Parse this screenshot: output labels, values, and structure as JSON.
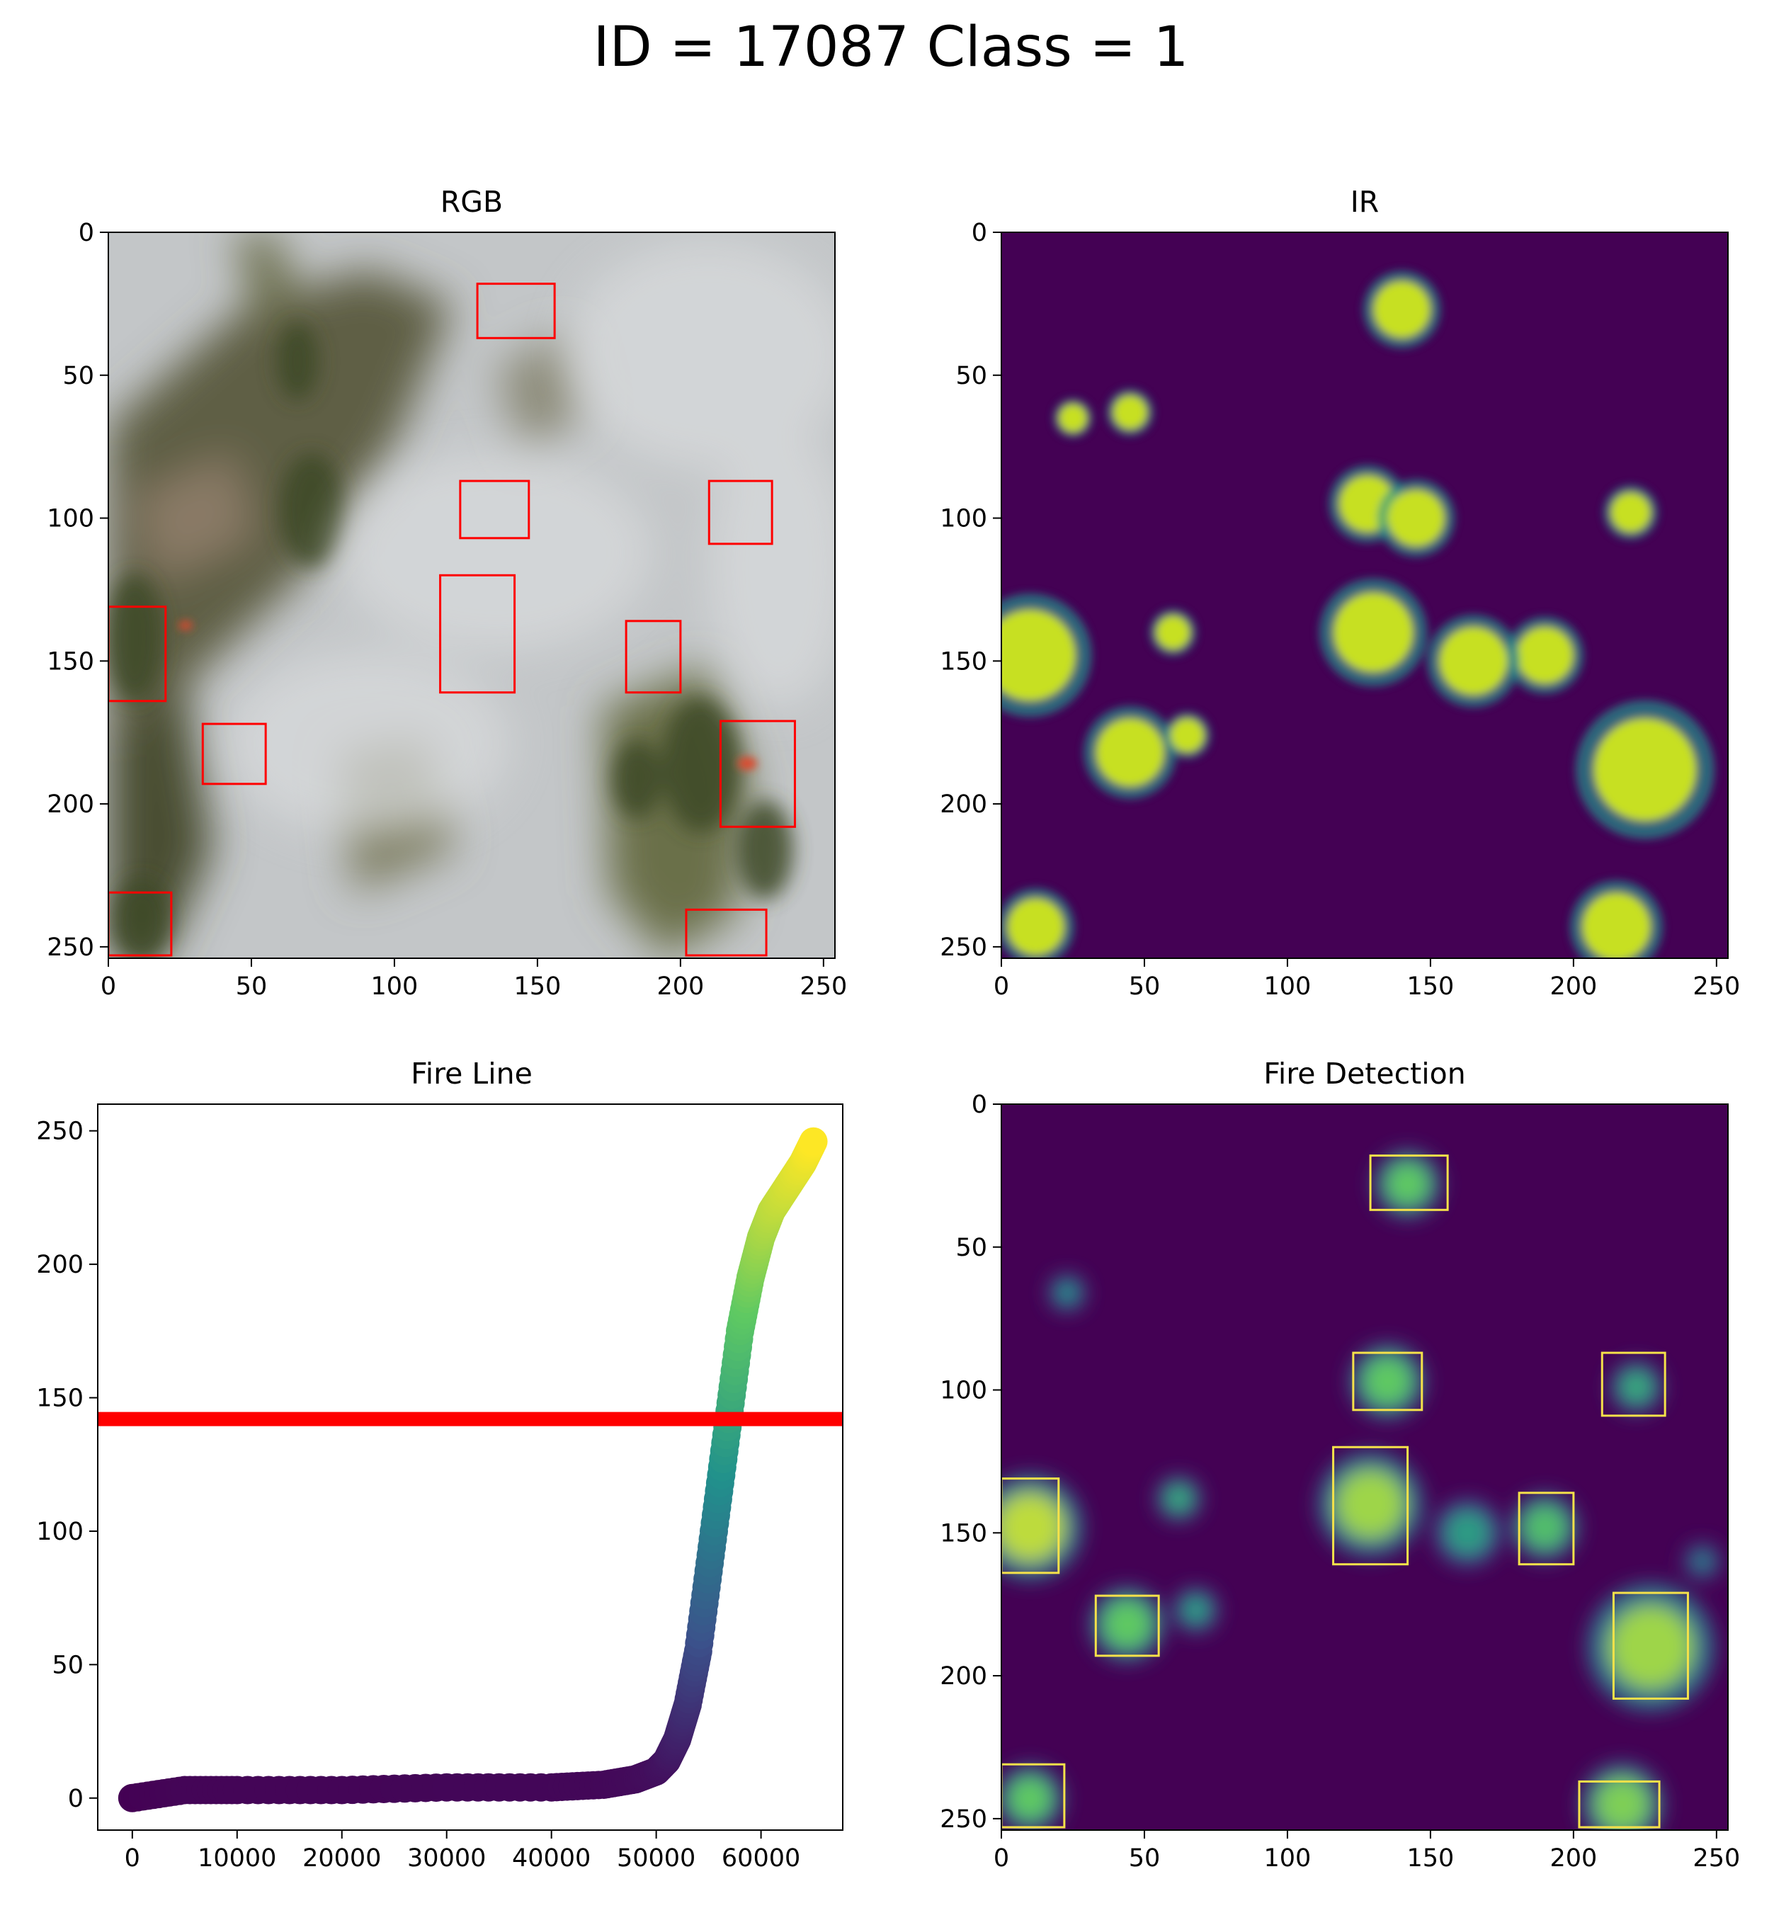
{
  "suptitle": "ID = 17087 Class = 1",
  "panels": {
    "rgb": {
      "title": "RGB"
    },
    "ir": {
      "title": "IR"
    },
    "fireline": {
      "title": "Fire Line"
    },
    "detection": {
      "title": "Fire Detection"
    }
  },
  "chart_data": [
    {
      "type": "heatmap",
      "panel": "RGB",
      "title": "RGB",
      "description": "aerial photo of forest with smoke",
      "xlim": [
        0,
        254
      ],
      "ylim": [
        254,
        0
      ],
      "xticks": [
        0,
        50,
        100,
        150,
        200,
        250
      ],
      "yticks": [
        0,
        50,
        100,
        150,
        200,
        250
      ],
      "box_color": "#ff0000",
      "boxes": [
        {
          "x0": 129,
          "y0": 18,
          "x1": 156,
          "y1": 37
        },
        {
          "x0": 123,
          "y0": 87,
          "x1": 147,
          "y1": 107
        },
        {
          "x0": 210,
          "y0": 87,
          "x1": 232,
          "y1": 109
        },
        {
          "x0": 116,
          "y0": 120,
          "x1": 142,
          "y1": 161
        },
        {
          "x0": 181,
          "y0": 136,
          "x1": 200,
          "y1": 161
        },
        {
          "x0": 0,
          "y0": 131,
          "x1": 20,
          "y1": 164
        },
        {
          "x0": 33,
          "y0": 172,
          "x1": 55,
          "y1": 193
        },
        {
          "x0": 214,
          "y0": 171,
          "x1": 240,
          "y1": 208
        },
        {
          "x0": 0,
          "y0": 231,
          "x1": 22,
          "y1": 253
        },
        {
          "x0": 202,
          "y0": 237,
          "x1": 230,
          "y1": 253
        }
      ]
    },
    {
      "type": "heatmap",
      "panel": "IR",
      "title": "IR",
      "colormap": "viridis",
      "xlim": [
        0,
        254
      ],
      "ylim": [
        254,
        0
      ],
      "xticks": [
        0,
        50,
        100,
        150,
        200,
        250
      ],
      "yticks": [
        0,
        50,
        100,
        150,
        200,
        250
      ],
      "hot_regions": [
        {
          "cx": 140,
          "cy": 27,
          "r": 10
        },
        {
          "cx": 128,
          "cy": 95,
          "r": 10
        },
        {
          "cx": 145,
          "cy": 100,
          "r": 10
        },
        {
          "cx": 220,
          "cy": 98,
          "r": 7
        },
        {
          "cx": 130,
          "cy": 140,
          "r": 14
        },
        {
          "cx": 190,
          "cy": 148,
          "r": 10
        },
        {
          "cx": 165,
          "cy": 150,
          "r": 12
        },
        {
          "cx": 10,
          "cy": 148,
          "r": 16
        },
        {
          "cx": 45,
          "cy": 182,
          "r": 12
        },
        {
          "cx": 225,
          "cy": 188,
          "r": 18
        },
        {
          "cx": 60,
          "cy": 140,
          "r": 6
        },
        {
          "cx": 65,
          "cy": 176,
          "r": 6
        },
        {
          "cx": 12,
          "cy": 243,
          "r": 10
        },
        {
          "cx": 215,
          "cy": 243,
          "r": 12
        },
        {
          "cx": 25,
          "cy": 65,
          "r": 5
        },
        {
          "cx": 45,
          "cy": 63,
          "r": 6
        }
      ]
    },
    {
      "type": "scatter",
      "panel": "Fire Line",
      "title": "Fire Line",
      "colormap": "viridis",
      "xlim": [
        -3300,
        67800
      ],
      "ylim": [
        -12,
        260
      ],
      "xticks": [
        0,
        10000,
        20000,
        30000,
        40000,
        50000,
        60000
      ],
      "yticks": [
        0,
        50,
        100,
        150,
        200,
        250
      ],
      "threshold_line": {
        "y": 142,
        "color": "#ff0000"
      },
      "x": [
        0,
        5000,
        10000,
        20000,
        30000,
        40000,
        45000,
        48000,
        50000,
        51000,
        52000,
        53000,
        54000,
        55000,
        56000,
        57000,
        58000,
        59000,
        60000,
        61000,
        62000,
        63000,
        64000,
        65000
      ],
      "values": [
        0,
        3,
        3,
        3,
        4,
        4,
        5,
        7,
        10,
        14,
        22,
        35,
        55,
        85,
        115,
        145,
        175,
        195,
        210,
        220,
        226,
        232,
        238,
        246
      ]
    },
    {
      "type": "heatmap",
      "panel": "Fire Detection",
      "title": "Fire Detection",
      "colormap": "viridis",
      "xlim": [
        0,
        254
      ],
      "ylim": [
        254,
        0
      ],
      "xticks": [
        0,
        50,
        100,
        150,
        200,
        250
      ],
      "yticks": [
        0,
        50,
        100,
        150,
        200,
        250
      ],
      "box_color": "#f5e24a",
      "boxes": [
        {
          "x0": 129,
          "y0": 18,
          "x1": 156,
          "y1": 37
        },
        {
          "x0": 123,
          "y0": 87,
          "x1": 147,
          "y1": 107
        },
        {
          "x0": 210,
          "y0": 87,
          "x1": 232,
          "y1": 109
        },
        {
          "x0": 116,
          "y0": 120,
          "x1": 142,
          "y1": 161
        },
        {
          "x0": 181,
          "y0": 136,
          "x1": 200,
          "y1": 161
        },
        {
          "x0": 0,
          "y0": 131,
          "x1": 20,
          "y1": 164
        },
        {
          "x0": 33,
          "y0": 172,
          "x1": 55,
          "y1": 193
        },
        {
          "x0": 214,
          "y0": 171,
          "x1": 240,
          "y1": 208
        },
        {
          "x0": 0,
          "y0": 231,
          "x1": 22,
          "y1": 253
        },
        {
          "x0": 202,
          "y0": 237,
          "x1": 230,
          "y1": 253
        }
      ],
      "blobs": [
        {
          "cx": 142,
          "cy": 28,
          "r": 9,
          "v": 0.75
        },
        {
          "cx": 135,
          "cy": 97,
          "r": 10,
          "v": 0.75
        },
        {
          "cx": 222,
          "cy": 99,
          "r": 7,
          "v": 0.6
        },
        {
          "cx": 129,
          "cy": 140,
          "r": 14,
          "v": 0.85
        },
        {
          "cx": 190,
          "cy": 148,
          "r": 9,
          "v": 0.7
        },
        {
          "cx": 10,
          "cy": 148,
          "r": 14,
          "v": 0.9
        },
        {
          "cx": 44,
          "cy": 182,
          "r": 10,
          "v": 0.75
        },
        {
          "cx": 227,
          "cy": 190,
          "r": 17,
          "v": 0.85
        },
        {
          "cx": 10,
          "cy": 243,
          "r": 9,
          "v": 0.75
        },
        {
          "cx": 217,
          "cy": 245,
          "r": 11,
          "v": 0.8
        },
        {
          "cx": 62,
          "cy": 138,
          "r": 6,
          "v": 0.6
        },
        {
          "cx": 68,
          "cy": 177,
          "r": 6,
          "v": 0.55
        },
        {
          "cx": 23,
          "cy": 66,
          "r": 5,
          "v": 0.5
        },
        {
          "cx": 163,
          "cy": 150,
          "r": 9,
          "v": 0.55
        },
        {
          "cx": 245,
          "cy": 160,
          "r": 5,
          "v": 0.4
        }
      ]
    }
  ]
}
